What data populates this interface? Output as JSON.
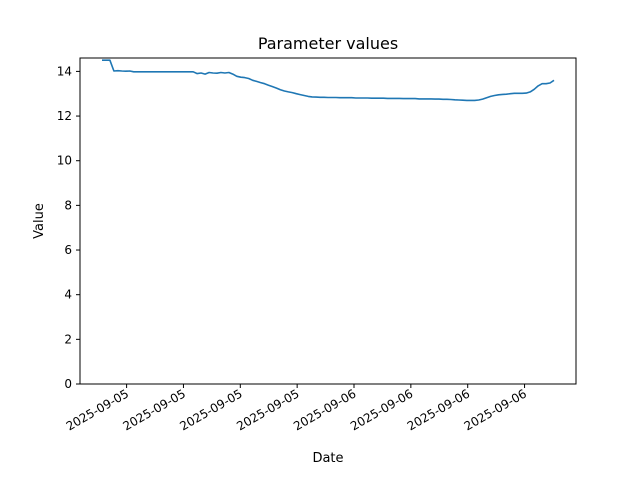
{
  "chart_data": {
    "type": "line",
    "title": "Parameter values",
    "xlabel": "Date",
    "ylabel": "Value",
    "ylim": [
      0,
      14.6
    ],
    "y_ticks": [
      0,
      2,
      4,
      6,
      8,
      10,
      12,
      14
    ],
    "x_tick_labels": [
      "2025-09-05",
      "2025-09-05",
      "2025-09-05",
      "2025-09-05",
      "2025-09-06",
      "2025-09-06",
      "2025-09-06",
      "2025-09-06"
    ],
    "grid": false,
    "colors": {
      "series": "#1f77b4"
    },
    "series": [
      {
        "values": [
          14.5,
          14.5,
          14.5,
          14.02,
          14.03,
          14.02,
          14.01,
          14.02,
          13.98,
          13.98,
          13.98,
          13.98,
          13.98,
          13.98,
          13.98,
          13.98,
          13.98,
          13.98,
          13.98,
          13.98,
          13.98,
          13.98,
          13.98,
          13.98,
          13.9,
          13.93,
          13.88,
          13.95,
          13.93,
          13.92,
          13.95,
          13.93,
          13.95,
          13.88,
          13.78,
          13.74,
          13.72,
          13.68,
          13.6,
          13.55,
          13.5,
          13.45,
          13.38,
          13.32,
          13.25,
          13.18,
          13.12,
          13.08,
          13.05,
          13.0,
          12.96,
          12.92,
          12.88,
          12.86,
          12.85,
          12.84,
          12.84,
          12.83,
          12.83,
          12.83,
          12.82,
          12.82,
          12.82,
          12.82,
          12.81,
          12.81,
          12.81,
          12.81,
          12.8,
          12.8,
          12.8,
          12.8,
          12.79,
          12.79,
          12.79,
          12.79,
          12.78,
          12.78,
          12.78,
          12.78,
          12.77,
          12.77,
          12.77,
          12.77,
          12.76,
          12.76,
          12.75,
          12.75,
          12.74,
          12.73,
          12.72,
          12.71,
          12.7,
          12.7,
          12.7,
          12.72,
          12.76,
          12.82,
          12.88,
          12.92,
          12.95,
          12.97,
          12.98,
          13.0,
          13.02,
          13.02,
          13.02,
          13.03,
          13.08,
          13.2,
          13.35,
          13.45,
          13.45,
          13.48,
          13.6
        ]
      }
    ]
  }
}
